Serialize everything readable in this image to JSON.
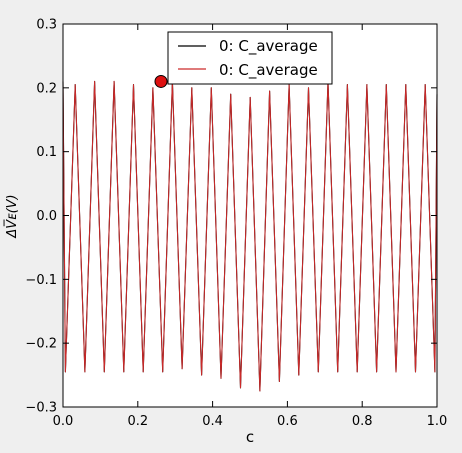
{
  "figure": {
    "background": "#efefef"
  },
  "chart_data": {
    "type": "line",
    "title": "",
    "xlabel": "c",
    "ylabel": "ΔV̅ᴇ(V)",
    "xlim": [
      0.0,
      1.0
    ],
    "ylim": [
      -0.3,
      0.3
    ],
    "x_ticks": [
      "0.0",
      "0.2",
      "0.4",
      "0.6",
      "0.8",
      "1.0"
    ],
    "x_tick_values": [
      0.0,
      0.2,
      0.4,
      0.6,
      0.8,
      1.0
    ],
    "y_ticks": [
      "−0.3",
      "−0.2",
      "−0.1",
      "0.0",
      "0.1",
      "0.2",
      "0.3"
    ],
    "y_tick_values": [
      -0.3,
      -0.2,
      -0.1,
      0.0,
      0.1,
      0.2,
      0.3
    ],
    "grid": false,
    "legend_position": "top-center",
    "series": [
      {
        "name": "0: C_average",
        "color": "#000000",
        "x": [
          0.0,
          0.0065,
          0.0325,
          0.0585,
          0.0845,
          0.1105,
          0.1365,
          0.1625,
          0.1885,
          0.2145,
          0.2405,
          0.2665,
          0.2925,
          0.3185,
          0.3445,
          0.3705,
          0.3965,
          0.4225,
          0.4485,
          0.4745,
          0.5005,
          0.5265,
          0.5525,
          0.5785,
          0.6045,
          0.6305,
          0.6565,
          0.6825,
          0.7085,
          0.7345,
          0.7605,
          0.7865,
          0.8125,
          0.8385,
          0.8645,
          0.8905,
          0.9165,
          0.9425,
          0.9685,
          0.9945,
          1.0
        ],
        "y": [
          0.21,
          -0.245,
          0.205,
          -0.245,
          0.21,
          -0.245,
          0.21,
          -0.245,
          0.205,
          -0.245,
          0.2,
          -0.245,
          0.21,
          -0.24,
          0.2,
          -0.25,
          0.2,
          -0.255,
          0.19,
          -0.27,
          0.185,
          -0.275,
          0.195,
          -0.26,
          0.205,
          -0.25,
          0.2,
          -0.245,
          0.21,
          -0.245,
          0.205,
          -0.245,
          0.205,
          -0.245,
          0.205,
          -0.245,
          0.205,
          -0.245,
          0.205,
          -0.245,
          0.19
        ]
      },
      {
        "name": "0: C_average",
        "color": "#cc2a2a",
        "x": [
          0.0,
          0.0065,
          0.0325,
          0.0585,
          0.0845,
          0.1105,
          0.1365,
          0.1625,
          0.1885,
          0.2145,
          0.2405,
          0.2665,
          0.2925,
          0.3185,
          0.3445,
          0.3705,
          0.3965,
          0.4225,
          0.4485,
          0.4745,
          0.5005,
          0.5265,
          0.5525,
          0.5785,
          0.6045,
          0.6305,
          0.6565,
          0.6825,
          0.7085,
          0.7345,
          0.7605,
          0.7865,
          0.8125,
          0.8385,
          0.8645,
          0.8905,
          0.9165,
          0.9425,
          0.9685,
          0.9945,
          1.0
        ],
        "y": [
          0.21,
          -0.245,
          0.205,
          -0.245,
          0.21,
          -0.245,
          0.21,
          -0.245,
          0.205,
          -0.245,
          0.2,
          -0.245,
          0.21,
          -0.24,
          0.2,
          -0.25,
          0.2,
          -0.255,
          0.19,
          -0.27,
          0.185,
          -0.275,
          0.195,
          -0.26,
          0.205,
          -0.25,
          0.2,
          -0.245,
          0.21,
          -0.245,
          0.205,
          -0.245,
          0.205,
          -0.245,
          0.205,
          -0.245,
          0.205,
          -0.245,
          0.205,
          -0.245,
          0.19
        ]
      }
    ],
    "marker": {
      "x": 0.262,
      "y": 0.21,
      "color": "#dd1111"
    }
  }
}
